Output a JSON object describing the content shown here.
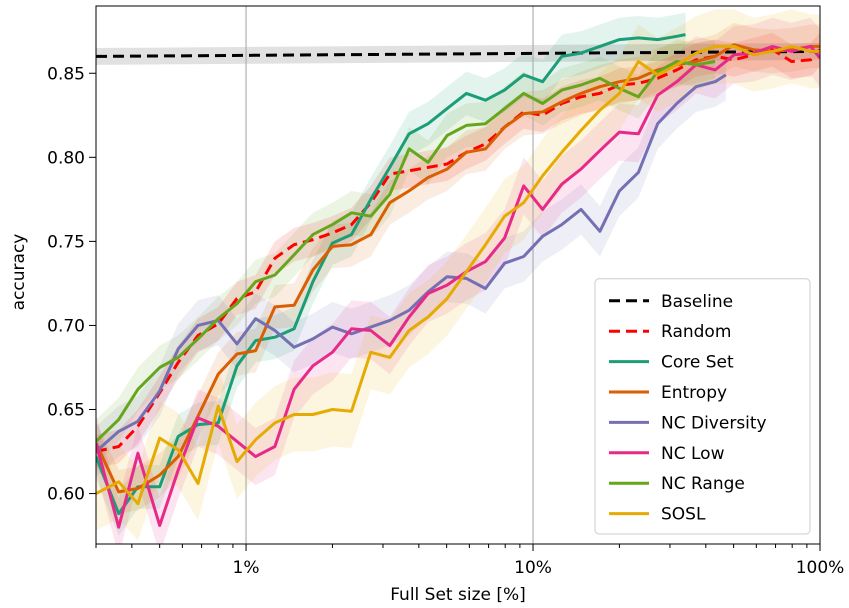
{
  "chart_data": {
    "type": "line",
    "xlabel": "Full Set size [%]",
    "ylabel": "accuracy",
    "xscale": "log",
    "xlim": [
      0.3,
      100
    ],
    "ylim": [
      0.57,
      0.89
    ],
    "grid": "vertical lines at 1% and 10%",
    "x_ticks": [
      {
        "value": 1,
        "label": "1%"
      },
      {
        "value": 10,
        "label": "10%"
      },
      {
        "value": 100,
        "label": "100%"
      }
    ],
    "y_ticks": [
      {
        "value": 0.6,
        "label": "0.60"
      },
      {
        "value": 0.65,
        "label": "0.65"
      },
      {
        "value": 0.7,
        "label": "0.70"
      },
      {
        "value": 0.75,
        "label": "0.75"
      },
      {
        "value": 0.8,
        "label": "0.80"
      },
      {
        "value": 0.85,
        "label": "0.85"
      }
    ],
    "legend_position": "lower right",
    "series": [
      {
        "name": "Baseline",
        "color": "#000000",
        "dash": true,
        "band": 0.005,
        "band_color": "#888888",
        "x": [
          0.3,
          100
        ],
        "y": [
          0.86,
          0.863
        ]
      },
      {
        "name": "Random",
        "color": "#ff0000",
        "dash": true,
        "band": 0.01,
        "x": [
          0.3,
          0.36,
          0.42,
          0.5,
          0.58,
          0.68,
          0.8,
          0.93,
          1.08,
          1.26,
          1.47,
          1.71,
          2.0,
          2.33,
          2.72,
          3.17,
          3.7,
          4.31,
          5.02,
          5.86,
          6.83,
          7.96,
          9.28,
          10.8,
          12.6,
          14.7,
          17.1,
          20.0,
          23.3,
          27.2,
          31.7,
          37.0,
          43.1,
          50.2,
          58.6,
          68.3,
          79.6,
          92.8,
          100
        ],
        "y": [
          0.625,
          0.628,
          0.64,
          0.66,
          0.678,
          0.694,
          0.701,
          0.716,
          0.72,
          0.74,
          0.748,
          0.751,
          0.755,
          0.76,
          0.773,
          0.79,
          0.792,
          0.794,
          0.796,
          0.803,
          0.808,
          0.818,
          0.827,
          0.825,
          0.832,
          0.836,
          0.838,
          0.843,
          0.844,
          0.847,
          0.852,
          0.858,
          0.86,
          0.858,
          0.861,
          0.864,
          0.857,
          0.858,
          0.864
        ]
      },
      {
        "name": "Core Set",
        "color": "#1b9e77",
        "dash": false,
        "band": 0.013,
        "x": [
          0.3,
          0.36,
          0.42,
          0.5,
          0.58,
          0.68,
          0.8,
          0.93,
          1.08,
          1.26,
          1.47,
          1.71,
          2.0,
          2.33,
          2.72,
          3.17,
          3.7,
          4.31,
          5.02,
          5.86,
          6.83,
          7.96,
          9.28,
          10.8,
          12.6,
          14.7,
          17.1,
          20.0,
          23.3,
          27.2,
          31.7,
          34.0
        ],
        "y": [
          0.622,
          0.588,
          0.604,
          0.604,
          0.634,
          0.641,
          0.642,
          0.676,
          0.691,
          0.693,
          0.698,
          0.726,
          0.749,
          0.754,
          0.775,
          0.794,
          0.814,
          0.82,
          0.829,
          0.838,
          0.834,
          0.84,
          0.849,
          0.845,
          0.86,
          0.862,
          0.866,
          0.87,
          0.871,
          0.87,
          0.872,
          0.873
        ]
      },
      {
        "name": "Entropy",
        "color": "#d95f02",
        "dash": false,
        "band": 0.013,
        "x": [
          0.3,
          0.36,
          0.42,
          0.5,
          0.58,
          0.68,
          0.8,
          0.93,
          1.08,
          1.26,
          1.47,
          1.71,
          2.0,
          2.33,
          2.72,
          3.17,
          3.7,
          4.31,
          5.02,
          5.86,
          6.83,
          7.96,
          9.28,
          10.8,
          12.6,
          14.7,
          17.1,
          20.0,
          23.3,
          27.2,
          31.7,
          37.0,
          43.1,
          50.2,
          58.6,
          68.3,
          79.6,
          92.8,
          100
        ],
        "y": [
          0.63,
          0.601,
          0.603,
          0.611,
          0.622,
          0.646,
          0.671,
          0.683,
          0.685,
          0.711,
          0.712,
          0.733,
          0.747,
          0.748,
          0.754,
          0.773,
          0.78,
          0.788,
          0.793,
          0.803,
          0.805,
          0.818,
          0.826,
          0.827,
          0.833,
          0.838,
          0.842,
          0.845,
          0.847,
          0.852,
          0.855,
          0.857,
          0.86,
          0.867,
          0.864,
          0.863,
          0.864,
          0.866,
          0.866
        ]
      },
      {
        "name": "NC Diversity",
        "color": "#7570b3",
        "dash": false,
        "band": 0.015,
        "x": [
          0.3,
          0.36,
          0.42,
          0.5,
          0.58,
          0.68,
          0.8,
          0.93,
          1.08,
          1.26,
          1.47,
          1.71,
          2.0,
          2.33,
          2.72,
          3.17,
          3.7,
          4.31,
          5.02,
          5.86,
          6.83,
          7.96,
          9.28,
          10.8,
          12.6,
          14.7,
          17.1,
          20.0,
          23.3,
          27.2,
          31.7,
          37.0,
          43.1,
          47.0
        ],
        "y": [
          0.625,
          0.637,
          0.643,
          0.661,
          0.686,
          0.7,
          0.703,
          0.689,
          0.704,
          0.697,
          0.687,
          0.692,
          0.699,
          0.695,
          0.699,
          0.703,
          0.709,
          0.72,
          0.729,
          0.728,
          0.722,
          0.737,
          0.741,
          0.753,
          0.76,
          0.769,
          0.756,
          0.78,
          0.791,
          0.82,
          0.832,
          0.842,
          0.845,
          0.849
        ]
      },
      {
        "name": "NC Low",
        "color": "#e7298a",
        "dash": false,
        "band": 0.017,
        "x": [
          0.3,
          0.36,
          0.42,
          0.5,
          0.58,
          0.68,
          0.8,
          0.93,
          1.08,
          1.26,
          1.47,
          1.71,
          2.0,
          2.33,
          2.72,
          3.17,
          3.7,
          4.31,
          5.02,
          5.86,
          6.83,
          7.96,
          9.28,
          10.8,
          12.6,
          14.7,
          17.1,
          20.0,
          23.3,
          27.2,
          31.7,
          37.0,
          43.1,
          50.2,
          58.6,
          68.3,
          79.6,
          92.8,
          100
        ],
        "y": [
          0.63,
          0.58,
          0.624,
          0.581,
          0.614,
          0.645,
          0.64,
          0.631,
          0.622,
          0.628,
          0.662,
          0.676,
          0.684,
          0.698,
          0.697,
          0.688,
          0.705,
          0.719,
          0.724,
          0.732,
          0.738,
          0.752,
          0.783,
          0.769,
          0.784,
          0.793,
          0.804,
          0.815,
          0.814,
          0.837,
          0.845,
          0.855,
          0.852,
          0.861,
          0.862,
          0.866,
          0.863,
          0.866,
          0.859
        ]
      },
      {
        "name": "NC Range",
        "color": "#66a61e",
        "dash": false,
        "band": 0.013,
        "x": [
          0.3,
          0.36,
          0.42,
          0.5,
          0.58,
          0.68,
          0.8,
          0.93,
          1.08,
          1.26,
          1.47,
          1.71,
          2.0,
          2.33,
          2.72,
          3.17,
          3.7,
          4.31,
          5.02,
          5.86,
          6.83,
          7.96,
          9.28,
          10.8,
          12.6,
          14.7,
          17.1,
          20.0,
          23.3,
          27.2,
          31.7,
          37.0,
          43.1
        ],
        "y": [
          0.631,
          0.644,
          0.662,
          0.675,
          0.681,
          0.692,
          0.704,
          0.713,
          0.726,
          0.73,
          0.742,
          0.754,
          0.76,
          0.767,
          0.765,
          0.778,
          0.805,
          0.797,
          0.813,
          0.819,
          0.82,
          0.829,
          0.838,
          0.832,
          0.84,
          0.843,
          0.847,
          0.841,
          0.836,
          0.851,
          0.857,
          0.855,
          0.857
        ]
      },
      {
        "name": "SOSL",
        "color": "#e6ab02",
        "dash": false,
        "band": 0.022,
        "x": [
          0.3,
          0.36,
          0.42,
          0.5,
          0.58,
          0.68,
          0.8,
          0.93,
          1.08,
          1.26,
          1.47,
          1.71,
          2.0,
          2.33,
          2.72,
          3.17,
          3.7,
          4.31,
          5.02,
          5.86,
          6.83,
          7.96,
          9.28,
          10.8,
          12.6,
          14.7,
          17.1,
          20.0,
          23.3,
          27.2,
          31.7,
          37.0,
          43.1,
          50.2,
          58.6,
          68.3,
          79.6,
          92.8,
          100
        ],
        "y": [
          0.6,
          0.607,
          0.594,
          0.633,
          0.626,
          0.606,
          0.652,
          0.619,
          0.632,
          0.642,
          0.647,
          0.647,
          0.65,
          0.649,
          0.684,
          0.681,
          0.697,
          0.705,
          0.716,
          0.732,
          0.748,
          0.765,
          0.773,
          0.789,
          0.803,
          0.816,
          0.828,
          0.838,
          0.857,
          0.849,
          0.855,
          0.862,
          0.866,
          0.866,
          0.861,
          0.863,
          0.866,
          0.863,
          0.863
        ]
      }
    ]
  }
}
